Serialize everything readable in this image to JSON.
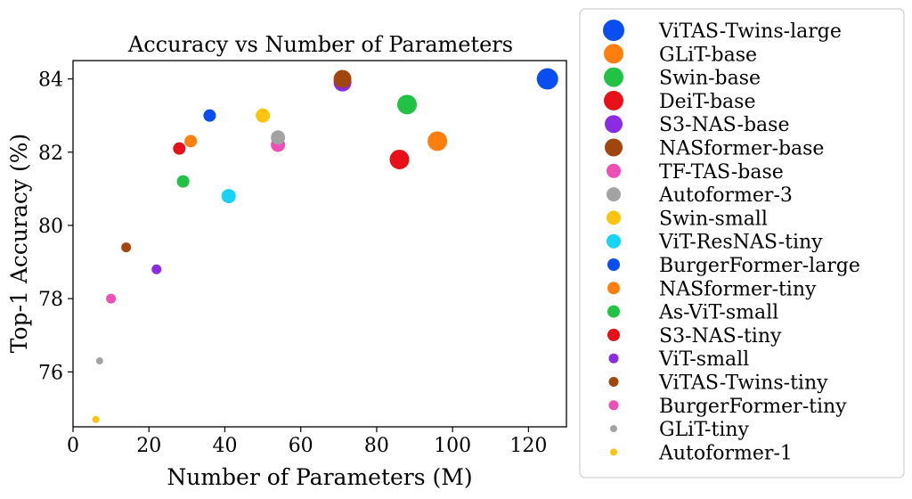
{
  "chart_data": {
    "type": "scatter",
    "title": "Accuracy vs Number of Parameters",
    "xlabel": "Number of Parameters (M)",
    "ylabel": "Top-1 Accuracy (%)",
    "xlim": [
      0,
      130
    ],
    "ylim": [
      74.5,
      84.5
    ],
    "xticks": [
      0,
      20,
      40,
      60,
      80,
      100,
      120
    ],
    "yticks": [
      76,
      78,
      80,
      82,
      84
    ],
    "grid": false,
    "legend_position": "outside-right",
    "series": [
      {
        "name": "ViTAS-Twins-large",
        "x": 125,
        "y": 84.0,
        "color": "#0a4df0",
        "marker_size": "largest"
      },
      {
        "name": "GLiT-base",
        "x": 96,
        "y": 82.3,
        "color": "#ff7f0e",
        "marker_size": "large"
      },
      {
        "name": "Swin-base",
        "x": 88,
        "y": 83.3,
        "color": "#22c244",
        "marker_size": "large"
      },
      {
        "name": "DeiT-base",
        "x": 86,
        "y": 81.8,
        "color": "#e8111a",
        "marker_size": "large"
      },
      {
        "name": "S3-NAS-base",
        "x": 71,
        "y": 83.9,
        "color": "#8b2be2",
        "marker_size": "medium-large"
      },
      {
        "name": "NASformer-base",
        "x": 71,
        "y": 84.0,
        "color": "#a0460e",
        "marker_size": "medium-large"
      },
      {
        "name": "TF-TAS-base",
        "x": 54,
        "y": 82.2,
        "color": "#ee4fb5",
        "marker_size": "medium"
      },
      {
        "name": "Autoformer-3",
        "x": 54,
        "y": 82.4,
        "color": "#a3a3a3",
        "marker_size": "medium"
      },
      {
        "name": "Swin-small",
        "x": 50,
        "y": 83.0,
        "color": "#fcc40e",
        "marker_size": "medium"
      },
      {
        "name": "ViT-ResNAS-tiny",
        "x": 41,
        "y": 80.8,
        "color": "#17d3f5",
        "marker_size": "medium"
      },
      {
        "name": "BurgerFormer-large",
        "x": 36,
        "y": 83.0,
        "color": "#0a4df0",
        "marker_size": "medium-small"
      },
      {
        "name": "NASformer-tiny",
        "x": 31,
        "y": 82.3,
        "color": "#ff7f0e",
        "marker_size": "medium-small"
      },
      {
        "name": "As-ViT-small",
        "x": 29,
        "y": 81.2,
        "color": "#22c244",
        "marker_size": "medium-small"
      },
      {
        "name": "S3-NAS-tiny",
        "x": 28,
        "y": 82.1,
        "color": "#e8111a",
        "marker_size": "medium-small"
      },
      {
        "name": "ViT-small",
        "x": 22,
        "y": 78.8,
        "color": "#8b2be2",
        "marker_size": "small"
      },
      {
        "name": "ViTAS-Twins-tiny",
        "x": 14,
        "y": 79.4,
        "color": "#a0460e",
        "marker_size": "small"
      },
      {
        "name": "BurgerFormer-tiny",
        "x": 10,
        "y": 78.0,
        "color": "#ee4fb5",
        "marker_size": "small"
      },
      {
        "name": "GLiT-tiny",
        "x": 7,
        "y": 76.3,
        "color": "#a3a3a3",
        "marker_size": "tiny"
      },
      {
        "name": "Autoformer-1",
        "x": 6,
        "y": 74.7,
        "color": "#fcc40e",
        "marker_size": "tiny"
      }
    ]
  }
}
